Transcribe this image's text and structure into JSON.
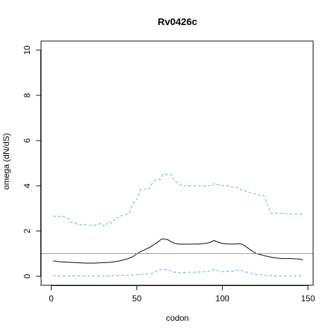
{
  "chart_data": {
    "type": "line",
    "title": "Rv0426c",
    "xlabel": "codon",
    "ylabel": "omega (dN/dS)",
    "xlim": [
      -6,
      153
    ],
    "ylim": [
      -0.4,
      10.4
    ],
    "xticks": [
      0,
      50,
      100,
      150
    ],
    "yticks": [
      0,
      2,
      4,
      6,
      8,
      10
    ],
    "grid": false,
    "legend": "none",
    "reference_line": {
      "y": 1,
      "color": "#c77cc7"
    },
    "series": [
      {
        "role": "upper-bound",
        "style": "dashed",
        "color": "#5bb3e6",
        "x": [
          1,
          7,
          8,
          10,
          11,
          14,
          15,
          20,
          25,
          28,
          29,
          31,
          32,
          34,
          35,
          37,
          38,
          40,
          41,
          45,
          46,
          47,
          48,
          50,
          51,
          52,
          53,
          57,
          58,
          60,
          61,
          64,
          65,
          69,
          70,
          71,
          72,
          75,
          76,
          80,
          90,
          94,
          95,
          100,
          101,
          104,
          105,
          110,
          111,
          115,
          116,
          121,
          122,
          124,
          125,
          127,
          128,
          135,
          140,
          145,
          147
        ],
        "y": [
          2.65,
          2.65,
          2.6,
          2.55,
          2.4,
          2.35,
          2.3,
          2.28,
          2.25,
          2.3,
          2.35,
          2.2,
          2.3,
          2.4,
          2.35,
          2.5,
          2.6,
          2.6,
          2.7,
          2.75,
          2.9,
          3.1,
          3.25,
          3.4,
          3.6,
          3.82,
          3.85,
          3.85,
          4.0,
          4.2,
          4.25,
          4.3,
          4.5,
          4.5,
          4.5,
          4.35,
          4.2,
          4.1,
          4.0,
          4.0,
          4.0,
          4.02,
          4.1,
          4.0,
          4.02,
          4.0,
          3.95,
          3.9,
          3.8,
          3.75,
          3.7,
          3.6,
          3.58,
          3.58,
          3.4,
          3.05,
          2.8,
          2.78,
          2.75,
          2.75,
          2.75
        ]
      },
      {
        "role": "estimate",
        "style": "solid",
        "color": "#000000",
        "x": [
          1,
          5,
          10,
          15,
          20,
          25,
          30,
          35,
          40,
          45,
          48,
          50,
          52,
          55,
          58,
          60,
          62,
          64,
          65,
          68,
          70,
          72,
          75,
          80,
          85,
          90,
          93,
          95,
          97,
          100,
          105,
          110,
          112,
          115,
          118,
          120,
          125,
          130,
          135,
          140,
          145,
          147
        ],
        "y": [
          0.68,
          0.64,
          0.62,
          0.6,
          0.58,
          0.58,
          0.6,
          0.62,
          0.68,
          0.78,
          0.88,
          1.0,
          1.08,
          1.18,
          1.3,
          1.4,
          1.5,
          1.62,
          1.66,
          1.62,
          1.52,
          1.46,
          1.42,
          1.42,
          1.42,
          1.45,
          1.5,
          1.58,
          1.52,
          1.45,
          1.42,
          1.44,
          1.4,
          1.24,
          1.08,
          1.0,
          0.9,
          0.82,
          0.78,
          0.78,
          0.76,
          0.72
        ]
      },
      {
        "role": "lower-bound",
        "style": "dashed",
        "color": "#5bb3e6",
        "x": [
          1,
          10,
          20,
          30,
          40,
          48,
          52,
          55,
          60,
          62,
          63,
          64,
          67,
          70,
          72,
          75,
          80,
          85,
          90,
          93,
          95,
          97,
          100,
          105,
          108,
          110,
          113,
          115,
          120,
          125,
          130,
          140,
          147
        ],
        "y": [
          0.02,
          0.02,
          0.01,
          0.01,
          0.03,
          0.06,
          0.08,
          0.1,
          0.15,
          0.25,
          0.28,
          0.3,
          0.3,
          0.24,
          0.18,
          0.15,
          0.18,
          0.18,
          0.2,
          0.25,
          0.3,
          0.25,
          0.2,
          0.22,
          0.25,
          0.28,
          0.22,
          0.15,
          0.08,
          0.04,
          0.02,
          0.02,
          0.02
        ]
      }
    ]
  }
}
